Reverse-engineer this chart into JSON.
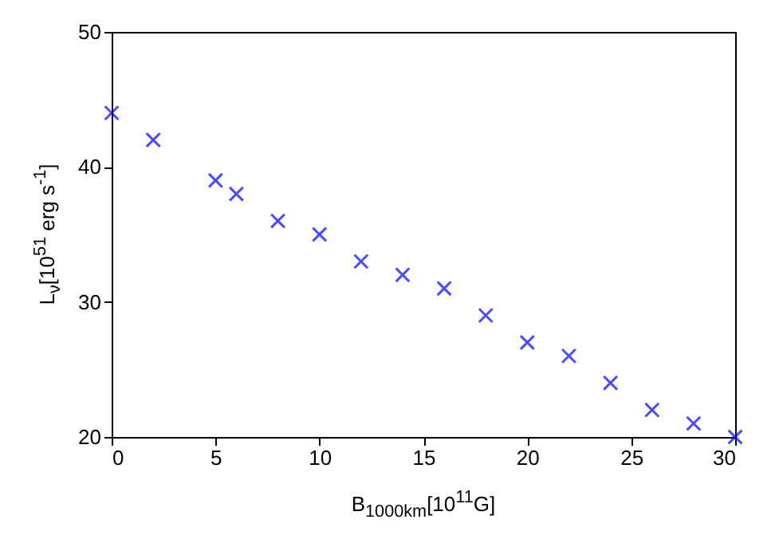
{
  "chart_data": {
    "type": "scatter",
    "xlabel": "B$_{1000km}$[10$^{11}$G]",
    "ylabel": "L$_{ν}$[10$^{51}$ erg s$^{-1}$]",
    "x": [
      0,
      2,
      5,
      6,
      8,
      10,
      12,
      14,
      16,
      18,
      20,
      22,
      24,
      26,
      28,
      30
    ],
    "series": [
      {
        "color": "#0000ff",
        "values": [
          44,
          42,
          39,
          38,
          36,
          35,
          33,
          32,
          31,
          29,
          27,
          26,
          24,
          22,
          21,
          20
        ]
      }
    ],
    "xlim": [
      0,
      30
    ],
    "xticks": [
      0,
      5,
      10,
      15,
      20,
      25,
      30
    ],
    "ylim": [
      20,
      50
    ],
    "yticks": [
      20,
      30,
      40,
      50
    ],
    "marker": "cross",
    "grid": false
  }
}
